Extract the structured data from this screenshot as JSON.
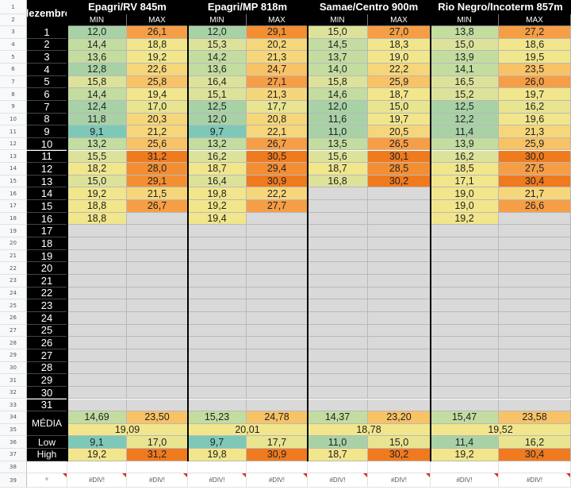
{
  "corner_label": "dezembro",
  "stations": [
    "Epagri/RV 845m",
    "Epagri/MP 818m",
    "Samae/Centro 900m",
    "Rio Negro/Incoterm 857m"
  ],
  "sub_headers": [
    "MIN",
    "MAX"
  ],
  "row_numbers": [
    "1",
    "2",
    "3",
    "4",
    "5",
    "6",
    "7",
    "8",
    "9",
    "10",
    "11",
    "12",
    "13",
    "14",
    "15",
    "16",
    "17",
    "18",
    "19",
    "20",
    "21",
    "22",
    "23",
    "24",
    "25",
    "26",
    "27",
    "28",
    "29",
    "30",
    "31",
    "32",
    "33",
    "34",
    "35",
    "36",
    "37",
    "38",
    "39"
  ],
  "days": [
    "1",
    "2",
    "3",
    "4",
    "5",
    "6",
    "7",
    "8",
    "9",
    "10",
    "11",
    "12",
    "13",
    "14",
    "15",
    "16",
    "17",
    "18",
    "19",
    "20",
    "21",
    "22",
    "23",
    "24",
    "25",
    "26",
    "27",
    "28",
    "29",
    "30",
    "31"
  ],
  "data_rows": [
    [
      "12,0",
      "26,1",
      "12,0",
      "29,1",
      "15,0",
      "27,0",
      "13,8",
      "27,2"
    ],
    [
      "14,4",
      "18,8",
      "15,3",
      "20,2",
      "14,5",
      "18,3",
      "15,0",
      "18,6"
    ],
    [
      "13,6",
      "19,2",
      "14,2",
      "21,3",
      "13,7",
      "19,0",
      "13,9",
      "19,5"
    ],
    [
      "12,8",
      "22,6",
      "13,6",
      "24,7",
      "14,0",
      "22,2",
      "14,1",
      "23,5"
    ],
    [
      "15,8",
      "25,8",
      "16,4",
      "27,1",
      "15,8",
      "25,9",
      "16,5",
      "26,0"
    ],
    [
      "14,4",
      "19,4",
      "15,1",
      "21,3",
      "14,6",
      "18,7",
      "15,2",
      "19,7"
    ],
    [
      "12,4",
      "17,0",
      "12,5",
      "17,7",
      "12,0",
      "15,0",
      "12,5",
      "16,2"
    ],
    [
      "11,8",
      "20,3",
      "12,0",
      "20,8",
      "11,6",
      "19,7",
      "12,2",
      "19,6"
    ],
    [
      "9,1",
      "21,2",
      "9,7",
      "22,1",
      "11,0",
      "20,5",
      "11,4",
      "21,3"
    ],
    [
      "13,2",
      "25,6",
      "13,2",
      "26,7",
      "13,5",
      "26,5",
      "13,9",
      "25,9"
    ],
    [
      "15,5",
      "31,2",
      "16,2",
      "30,5",
      "15,6",
      "30,1",
      "16,2",
      "30,0"
    ],
    [
      "18,2",
      "28,0",
      "18,7",
      "29,4",
      "18,7",
      "28,5",
      "18,5",
      "27,5"
    ],
    [
      "15,0",
      "29,1",
      "16,4",
      "30,9",
      "16,8",
      "30,2",
      "17,1",
      "30,4"
    ],
    [
      "19,2",
      "21,5",
      "19,8",
      "22,2",
      "",
      "",
      "19,0",
      "21,7"
    ],
    [
      "18,8",
      "26,7",
      "19,2",
      "27,7",
      "",
      "",
      "19,0",
      "26,6"
    ],
    [
      "18,8",
      "",
      "19,4",
      "",
      "",
      "",
      "19,2",
      ""
    ]
  ],
  "media_label": "MÉDIA",
  "media_values": [
    "14,69",
    "23,50",
    "15,23",
    "24,78",
    "14,37",
    "23,20",
    "15,47",
    "23,58"
  ],
  "media_overall": [
    "19,09",
    "20,01",
    "18,78",
    "19,52"
  ],
  "low_label": "Low",
  "low_values": [
    "9,1",
    "17,0",
    "9,7",
    "17,7",
    "11,0",
    "15,0",
    "11,4",
    "16,2"
  ],
  "high_label": "High",
  "high_values": [
    "19,2",
    "31,2",
    "19,8",
    "30,9",
    "18,7",
    "30,2",
    "19,2",
    "30,4"
  ],
  "bottom_row_label": "º",
  "bottom_row_values": [
    "#DIV!",
    "#DIV!",
    "#DIV!",
    "#DIV!",
    "#DIV!",
    "#DIV!",
    "#DIV!",
    "#DIV!"
  ],
  "colors": {
    "header_bg": "#000000",
    "empty_day": "#d9d9d9",
    "cool": "#7ec8b8",
    "mild_green": "#c3dca0",
    "yellow": "#f1e68c",
    "light_orange": "#f8c266",
    "orange": "#f69e45",
    "hot": "#f07a1e"
  }
}
